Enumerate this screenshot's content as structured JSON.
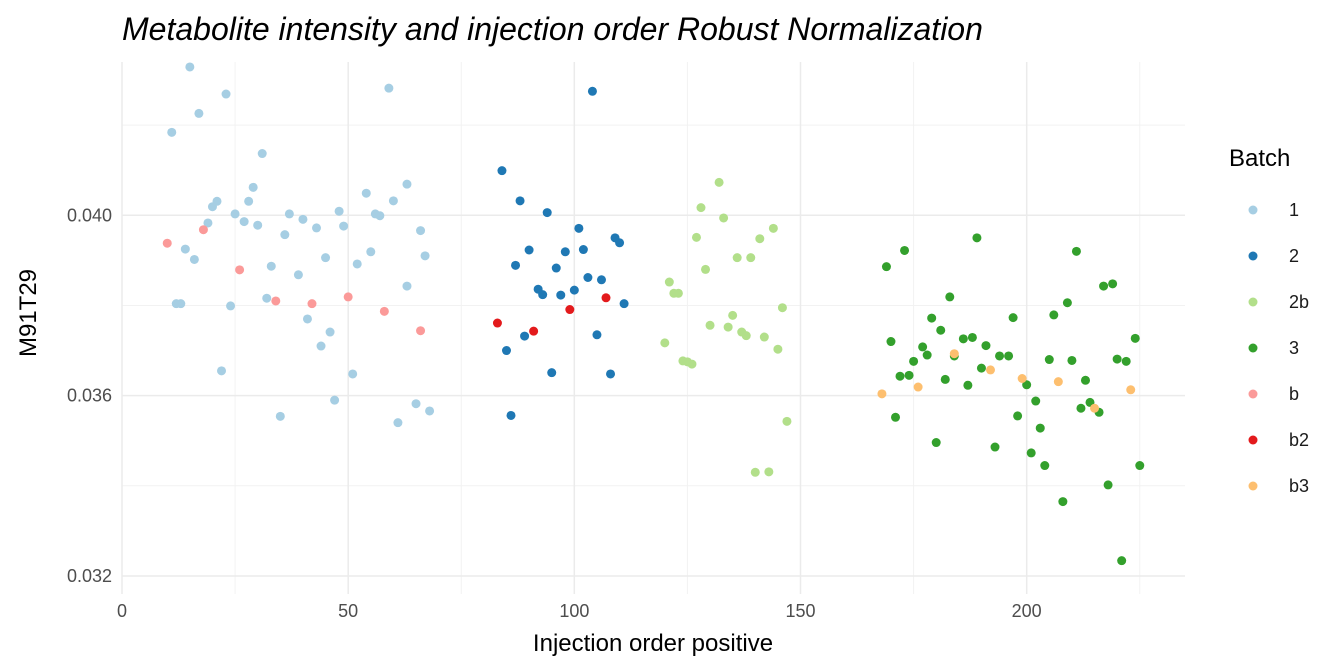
{
  "chart_data": {
    "type": "scatter",
    "title": "Metabolite intensity and injection order Robust Normalization",
    "xlabel": "Injection order positive",
    "ylabel": "M91T29",
    "xlim": [
      0,
      235
    ],
    "ylim": [
      0.0316,
      0.0434
    ],
    "x_ticks": [
      0,
      50,
      100,
      150,
      200
    ],
    "x_tick_labels": [
      "0",
      "50",
      "100",
      "150",
      "200"
    ],
    "y_ticks": [
      0.032,
      0.036,
      0.04
    ],
    "y_tick_labels": [
      "0.032",
      "0.036",
      "0.040"
    ],
    "grid": true,
    "legend": {
      "title": "Batch",
      "position": "right"
    },
    "series": [
      {
        "name": "1",
        "color": "#A6CEE3",
        "points": [
          [
            11,
            0.04184
          ],
          [
            12,
            0.03804
          ],
          [
            13,
            0.03804
          ],
          [
            14,
            0.03925
          ],
          [
            15,
            0.04329
          ],
          [
            16,
            0.03902
          ],
          [
            17,
            0.04226
          ],
          [
            19,
            0.03983
          ],
          [
            20,
            0.04019
          ],
          [
            21,
            0.04031
          ],
          [
            22,
            0.03655
          ],
          [
            23,
            0.04269
          ],
          [
            24,
            0.03799
          ],
          [
            25,
            0.04003
          ],
          [
            27,
            0.03986
          ],
          [
            28,
            0.04031
          ],
          [
            29,
            0.04062
          ],
          [
            30,
            0.03978
          ],
          [
            31,
            0.04137
          ],
          [
            32,
            0.03816
          ],
          [
            33,
            0.03887
          ],
          [
            35,
            0.03554
          ],
          [
            36,
            0.03957
          ],
          [
            37,
            0.04003
          ],
          [
            39,
            0.03868
          ],
          [
            40,
            0.03991
          ],
          [
            41,
            0.0377
          ],
          [
            43,
            0.03972
          ],
          [
            44,
            0.0371
          ],
          [
            45,
            0.03906
          ],
          [
            46,
            0.03741
          ],
          [
            47,
            0.0359
          ],
          [
            48,
            0.04009
          ],
          [
            49,
            0.03976
          ],
          [
            51,
            0.03648
          ],
          [
            52,
            0.03892
          ],
          [
            54,
            0.04049
          ],
          [
            55,
            0.03919
          ],
          [
            56,
            0.04003
          ],
          [
            57,
            0.03999
          ],
          [
            59,
            0.04282
          ],
          [
            60,
            0.04032
          ],
          [
            61,
            0.0354
          ],
          [
            63,
            0.04069
          ],
          [
            63,
            0.03843
          ],
          [
            65,
            0.03582
          ],
          [
            66,
            0.03966
          ],
          [
            67,
            0.0391
          ],
          [
            68,
            0.03566
          ]
        ]
      },
      {
        "name": "2",
        "color": "#1F78B4",
        "points": [
          [
            84,
            0.04099
          ],
          [
            85,
            0.037
          ],
          [
            86,
            0.03556
          ],
          [
            87,
            0.03889
          ],
          [
            88,
            0.04032
          ],
          [
            89,
            0.03732
          ],
          [
            90,
            0.03923
          ],
          [
            92,
            0.03836
          ],
          [
            93,
            0.03824
          ],
          [
            94,
            0.04006
          ],
          [
            95,
            0.03651
          ],
          [
            96,
            0.03883
          ],
          [
            97,
            0.03823
          ],
          [
            98,
            0.03919
          ],
          [
            100,
            0.03834
          ],
          [
            101,
            0.03971
          ],
          [
            102,
            0.03924
          ],
          [
            103,
            0.03862
          ],
          [
            104,
            0.04275
          ],
          [
            105,
            0.03735
          ],
          [
            106,
            0.03857
          ],
          [
            108,
            0.03648
          ],
          [
            109,
            0.0395
          ],
          [
            110,
            0.03939
          ],
          [
            111,
            0.03804
          ]
        ]
      },
      {
        "name": "2b",
        "color": "#B2DF8A",
        "points": [
          [
            120,
            0.03717
          ],
          [
            121,
            0.03852
          ],
          [
            122,
            0.03827
          ],
          [
            123,
            0.03827
          ],
          [
            124,
            0.03677
          ],
          [
            125,
            0.03675
          ],
          [
            126,
            0.0367
          ],
          [
            127,
            0.03951
          ],
          [
            128,
            0.04017
          ],
          [
            129,
            0.0388
          ],
          [
            130,
            0.03756
          ],
          [
            132,
            0.04073
          ],
          [
            133,
            0.03994
          ],
          [
            134,
            0.03752
          ],
          [
            135,
            0.03778
          ],
          [
            136,
            0.03906
          ],
          [
            137,
            0.03741
          ],
          [
            138,
            0.03733
          ],
          [
            139,
            0.03906
          ],
          [
            140,
            0.0343
          ],
          [
            141,
            0.03948
          ],
          [
            142,
            0.0373
          ],
          [
            143,
            0.03431
          ],
          [
            144,
            0.03971
          ],
          [
            145,
            0.03703
          ],
          [
            146,
            0.03795
          ],
          [
            147,
            0.03543
          ]
        ]
      },
      {
        "name": "3",
        "color": "#33A02C",
        "points": [
          [
            169,
            0.03886
          ],
          [
            170,
            0.0372
          ],
          [
            171,
            0.03552
          ],
          [
            172,
            0.03643
          ],
          [
            173,
            0.03922
          ],
          [
            174,
            0.03645
          ],
          [
            175,
            0.03676
          ],
          [
            177,
            0.03708
          ],
          [
            178,
            0.0369
          ],
          [
            179,
            0.03772
          ],
          [
            180,
            0.03496
          ],
          [
            181,
            0.03745
          ],
          [
            182,
            0.03636
          ],
          [
            183,
            0.03819
          ],
          [
            184,
            0.03688
          ],
          [
            186,
            0.03726
          ],
          [
            187,
            0.03623
          ],
          [
            188,
            0.03729
          ],
          [
            189,
            0.0395
          ],
          [
            190,
            0.03661
          ],
          [
            191,
            0.03711
          ],
          [
            193,
            0.03486
          ],
          [
            194,
            0.03688
          ],
          [
            196,
            0.03688
          ],
          [
            197,
            0.03773
          ],
          [
            198,
            0.03555
          ],
          [
            200,
            0.03624
          ],
          [
            201,
            0.03473
          ],
          [
            202,
            0.03588
          ],
          [
            203,
            0.03528
          ],
          [
            204,
            0.03445
          ],
          [
            205,
            0.0368
          ],
          [
            206,
            0.03779
          ],
          [
            208,
            0.03365
          ],
          [
            209,
            0.03806
          ],
          [
            210,
            0.03678
          ],
          [
            211,
            0.0392
          ],
          [
            212,
            0.03572
          ],
          [
            213,
            0.03634
          ],
          [
            214,
            0.03585
          ],
          [
            216,
            0.03563
          ],
          [
            217,
            0.03843
          ],
          [
            218,
            0.03402
          ],
          [
            219,
            0.03848
          ],
          [
            220,
            0.03681
          ],
          [
            221,
            0.03234
          ],
          [
            222,
            0.03676
          ],
          [
            224,
            0.03727
          ],
          [
            225,
            0.03445
          ]
        ]
      },
      {
        "name": "b",
        "color": "#FB9A99",
        "points": [
          [
            10,
            0.03938
          ],
          [
            18,
            0.03968
          ],
          [
            26,
            0.03879
          ],
          [
            34,
            0.0381
          ],
          [
            42,
            0.03804
          ],
          [
            50,
            0.03819
          ],
          [
            58,
            0.03787
          ],
          [
            66,
            0.03744
          ]
        ]
      },
      {
        "name": "b2",
        "color": "#E31A1C",
        "points": [
          [
            83,
            0.03761
          ],
          [
            91,
            0.03743
          ],
          [
            99,
            0.03791
          ],
          [
            107,
            0.03817
          ]
        ]
      },
      {
        "name": "b3",
        "color": "#FDBF6F",
        "points": [
          [
            168,
            0.03604
          ],
          [
            176,
            0.03619
          ],
          [
            184,
            0.03693
          ],
          [
            192,
            0.03657
          ],
          [
            199,
            0.03638
          ],
          [
            207,
            0.03631
          ],
          [
            215,
            0.03572
          ],
          [
            223,
            0.03613
          ]
        ]
      }
    ]
  }
}
